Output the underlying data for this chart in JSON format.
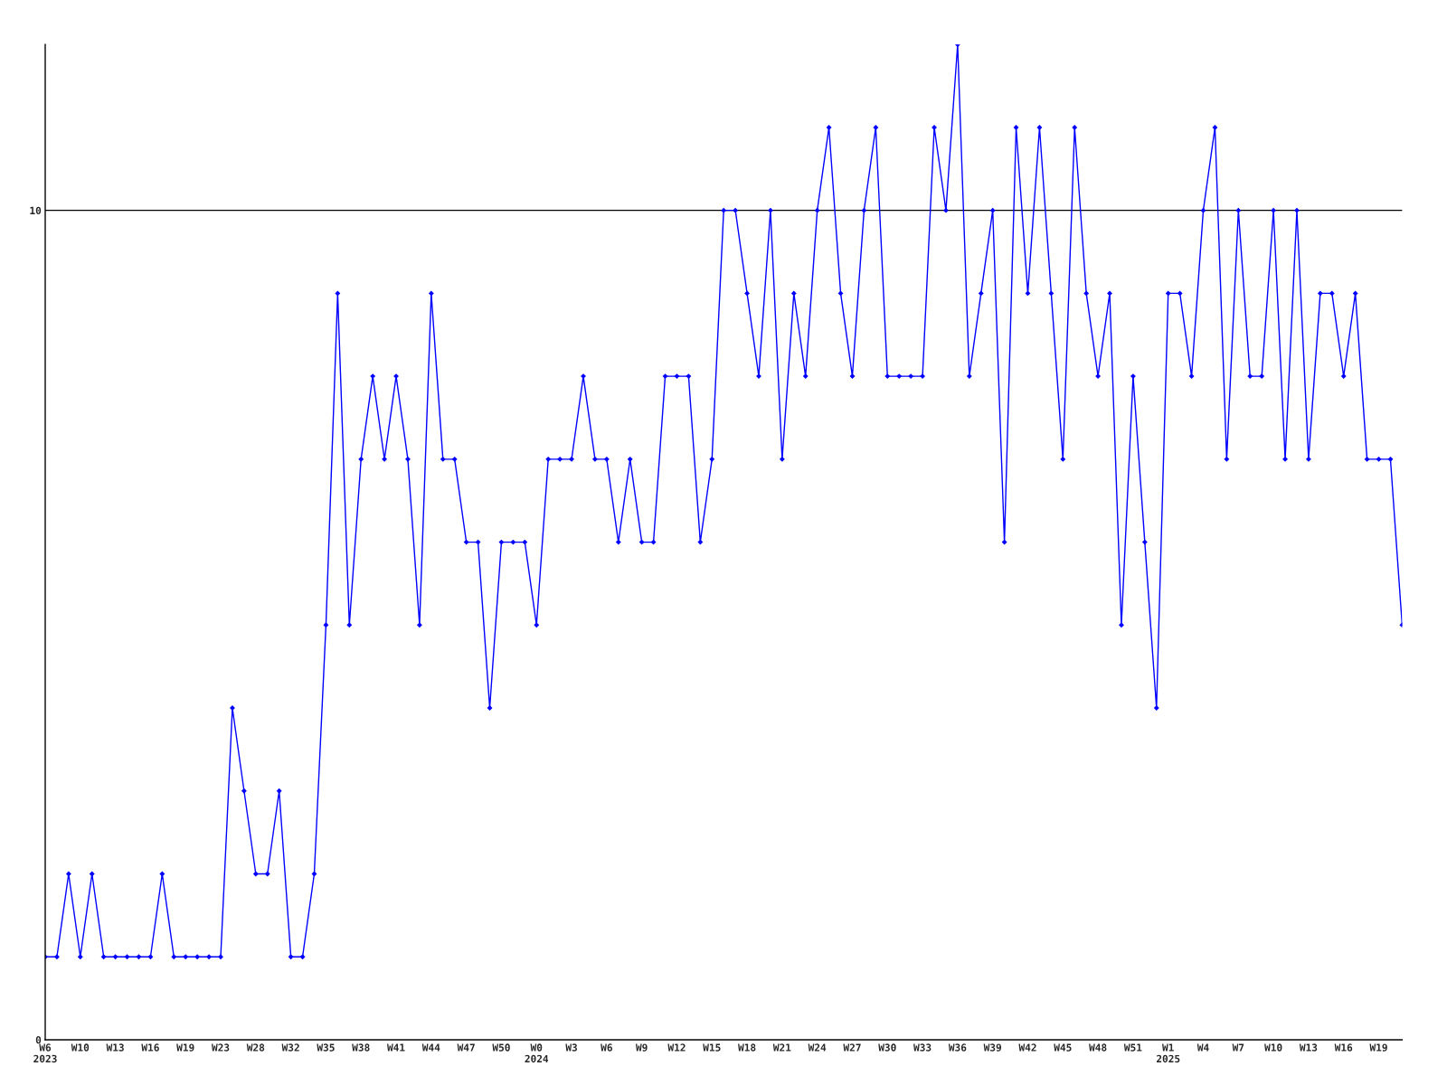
{
  "chart_data": {
    "type": "line",
    "categories": [
      "W6\n2023",
      null,
      null,
      "W10",
      null,
      null,
      "W13",
      null,
      null,
      "W16",
      null,
      null,
      "W19",
      null,
      null,
      "W23",
      null,
      null,
      "W28",
      null,
      null,
      "W32",
      null,
      null,
      "W35",
      null,
      null,
      "W38",
      null,
      null,
      "W41",
      null,
      null,
      "W44",
      null,
      null,
      "W47",
      null,
      null,
      "W50",
      null,
      null,
      "W0\n2024",
      null,
      null,
      "W3",
      null,
      null,
      "W6",
      null,
      null,
      "W9",
      null,
      null,
      "W12",
      null,
      null,
      "W15",
      null,
      null,
      "W18",
      null,
      null,
      "W21",
      null,
      null,
      "W24",
      null,
      null,
      "W27",
      null,
      null,
      "W30",
      null,
      null,
      "W33",
      null,
      null,
      "W36",
      null,
      null,
      "W39",
      null,
      null,
      "W42",
      null,
      null,
      "W45",
      null,
      null,
      "W48",
      null,
      null,
      "W51",
      null,
      null,
      "W1\n2025",
      null,
      null,
      "W4",
      null,
      null,
      "W7",
      null,
      null,
      "W10",
      null,
      null,
      "W13",
      null,
      null,
      "W16",
      null,
      null,
      "W19",
      null,
      null
    ],
    "series": [
      {
        "color": "#0000ff",
        "values": [
          1,
          1,
          2,
          1,
          2,
          1,
          1,
          1,
          1,
          1,
          2,
          1,
          1,
          1,
          1,
          1,
          4,
          3,
          2,
          2,
          3,
          1,
          1,
          2,
          5,
          9,
          5,
          7,
          8,
          7,
          8,
          7,
          5,
          9,
          7,
          7,
          6,
          6,
          4,
          6,
          6,
          6,
          5,
          7,
          7,
          7,
          8,
          7,
          7,
          6,
          7,
          6,
          6,
          8,
          8,
          8,
          6,
          7,
          10,
          10,
          9,
          8,
          10,
          7,
          9,
          8,
          10,
          11,
          9,
          8,
          10,
          11,
          8,
          8,
          8,
          8,
          11,
          10,
          12,
          8,
          9,
          10,
          6,
          11,
          9,
          11,
          9,
          7,
          11,
          9,
          8,
          9,
          5,
          8,
          6,
          4,
          9,
          9,
          8,
          10,
          11,
          7,
          10,
          8,
          8,
          10,
          7,
          10,
          7,
          9,
          9,
          8,
          9,
          7,
          7,
          7,
          5
        ]
      }
    ],
    "ylim": [
      0,
      12
    ],
    "yticks": [
      0,
      10
    ],
    "ref_lines": [
      {
        "axis": "y",
        "value": 10,
        "color": "#000000"
      }
    ],
    "marker": "diamond",
    "line_style": "solid",
    "grid": false,
    "legend": false
  }
}
